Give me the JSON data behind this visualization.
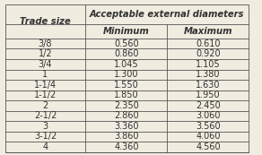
{
  "title_main": "Acceptable external diameters",
  "col_headers": [
    "Trade size",
    "Minimum",
    "Maximum"
  ],
  "merged_header": "Acceptable external diameters",
  "rows": [
    [
      "3/8",
      "0.560",
      "0.610"
    ],
    [
      "1/2",
      "0.860",
      "0.920"
    ],
    [
      "3/4",
      "1.045",
      "1.105"
    ],
    [
      "1",
      "1.300",
      "1.380"
    ],
    [
      "1-1/4",
      "1.550",
      "1.630"
    ],
    [
      "1-1/2",
      "1.850",
      "1.950"
    ],
    [
      "2",
      "2.350",
      "2.450"
    ],
    [
      "2-1/2",
      "2.860",
      "3.060"
    ],
    [
      "3",
      "3.360",
      "3.560"
    ],
    [
      "3-1/2",
      "3.860",
      "4.060"
    ],
    [
      "4",
      "4.360",
      "4.560"
    ]
  ],
  "bg_color": "#f0ece0",
  "header_bg": "#f0ece0",
  "line_color": "#555555",
  "text_color": "#333333",
  "font_size": 7.0,
  "header_font_size": 7.2
}
